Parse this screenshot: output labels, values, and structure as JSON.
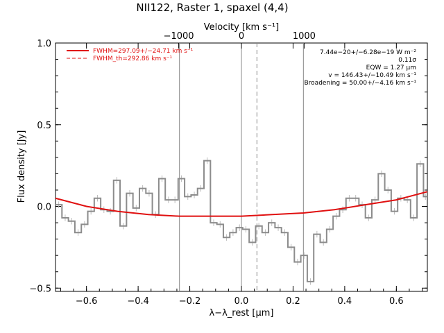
{
  "chart_data": {
    "type": "line",
    "title": "NII122, Raster 1, spaxel (4,4)",
    "xlabel": "λ−λ_rest [μm]",
    "ylabel": "Flux density [Jy]",
    "top_axis_label": "Velocity [km s⁻¹]",
    "xlim": [
      -0.72,
      0.72
    ],
    "ylim": [
      -0.52,
      1.0
    ],
    "x_ticks": [
      -0.6,
      -0.4,
      -0.2,
      0.0,
      0.2,
      0.4,
      0.6
    ],
    "x_tick_labels": [
      "−0.6",
      "−0.4",
      "−0.2",
      "0.0",
      "0.2",
      "0.4",
      "0.6"
    ],
    "y_ticks": [
      -0.5,
      0.0,
      0.5,
      1.0
    ],
    "y_tick_labels": [
      "−0.5",
      "0.0",
      "0.5",
      "1.0"
    ],
    "top_ticks_x": [
      -0.2429,
      0.0,
      0.2429
    ],
    "top_tick_labels": [
      "−1000",
      "0",
      "1000"
    ],
    "vertical_lines": [
      {
        "x": -0.24,
        "style": "solid"
      },
      {
        "x": 0.0,
        "style": "solid"
      },
      {
        "x": 0.06,
        "style": "dashed"
      },
      {
        "x": 0.24,
        "style": "solid"
      }
    ],
    "spectrum_step": {
      "x": [
        -0.72,
        -0.695,
        -0.67,
        -0.645,
        -0.62,
        -0.595,
        -0.57,
        -0.545,
        -0.52,
        -0.495,
        -0.47,
        -0.445,
        -0.42,
        -0.395,
        -0.37,
        -0.345,
        -0.32,
        -0.295,
        -0.27,
        -0.245,
        -0.22,
        -0.195,
        -0.17,
        -0.145,
        -0.12,
        -0.095,
        -0.07,
        -0.045,
        -0.02,
        0.005,
        0.03,
        0.055,
        0.08,
        0.105,
        0.13,
        0.155,
        0.18,
        0.205,
        0.23,
        0.255,
        0.28,
        0.305,
        0.33,
        0.355,
        0.38,
        0.405,
        0.43,
        0.455,
        0.48,
        0.505,
        0.53,
        0.555,
        0.58,
        0.605,
        0.63,
        0.655,
        0.68,
        0.705
      ],
      "y": [
        0.01,
        -0.07,
        -0.09,
        -0.16,
        -0.11,
        -0.03,
        0.05,
        -0.02,
        -0.03,
        0.16,
        -0.12,
        0.08,
        -0.01,
        0.11,
        0.08,
        -0.05,
        0.17,
        0.04,
        0.04,
        0.17,
        0.06,
        0.07,
        0.11,
        0.28,
        -0.1,
        -0.11,
        -0.19,
        -0.16,
        -0.13,
        -0.14,
        -0.22,
        -0.12,
        -0.16,
        -0.1,
        -0.13,
        -0.16,
        -0.25,
        -0.34,
        -0.3,
        -0.46,
        -0.17,
        -0.22,
        -0.14,
        -0.06,
        -0.02,
        0.05,
        0.05,
        0.01,
        -0.07,
        0.04,
        0.2,
        0.1,
        -0.03,
        0.05,
        0.04,
        -0.07,
        0.26,
        0.06
      ]
    },
    "fit_curve": {
      "x": [
        -0.72,
        -0.6,
        -0.48,
        -0.36,
        -0.24,
        -0.12,
        0.0,
        0.12,
        0.24,
        0.36,
        0.48,
        0.6,
        0.72
      ],
      "y": [
        0.05,
        0.0,
        -0.03,
        -0.05,
        -0.06,
        -0.06,
        -0.06,
        -0.05,
        -0.04,
        -0.02,
        0.01,
        0.04,
        0.09
      ],
      "color": "#e01010"
    },
    "spectrum_color": "#8c8c8c",
    "legend": [
      {
        "text": "FWHM=297.09+/−24.71 km s⁻¹",
        "color": "#e01010",
        "style": "solid"
      },
      {
        "text": "FWHM_th=292.86 km s⁻¹",
        "color": "#e01010",
        "style": "dashed"
      }
    ],
    "legend_position": "top-left",
    "annotations": [
      "7.44e−20+/−6.28e−19 W m⁻²",
      "0.11σ",
      "EQW = 1.27 μm",
      "v = 146.43+/−10.49 km s⁻¹",
      "Broadening = 50.00+/−4.16 km s⁻¹"
    ],
    "annotation_position": "top-right"
  }
}
